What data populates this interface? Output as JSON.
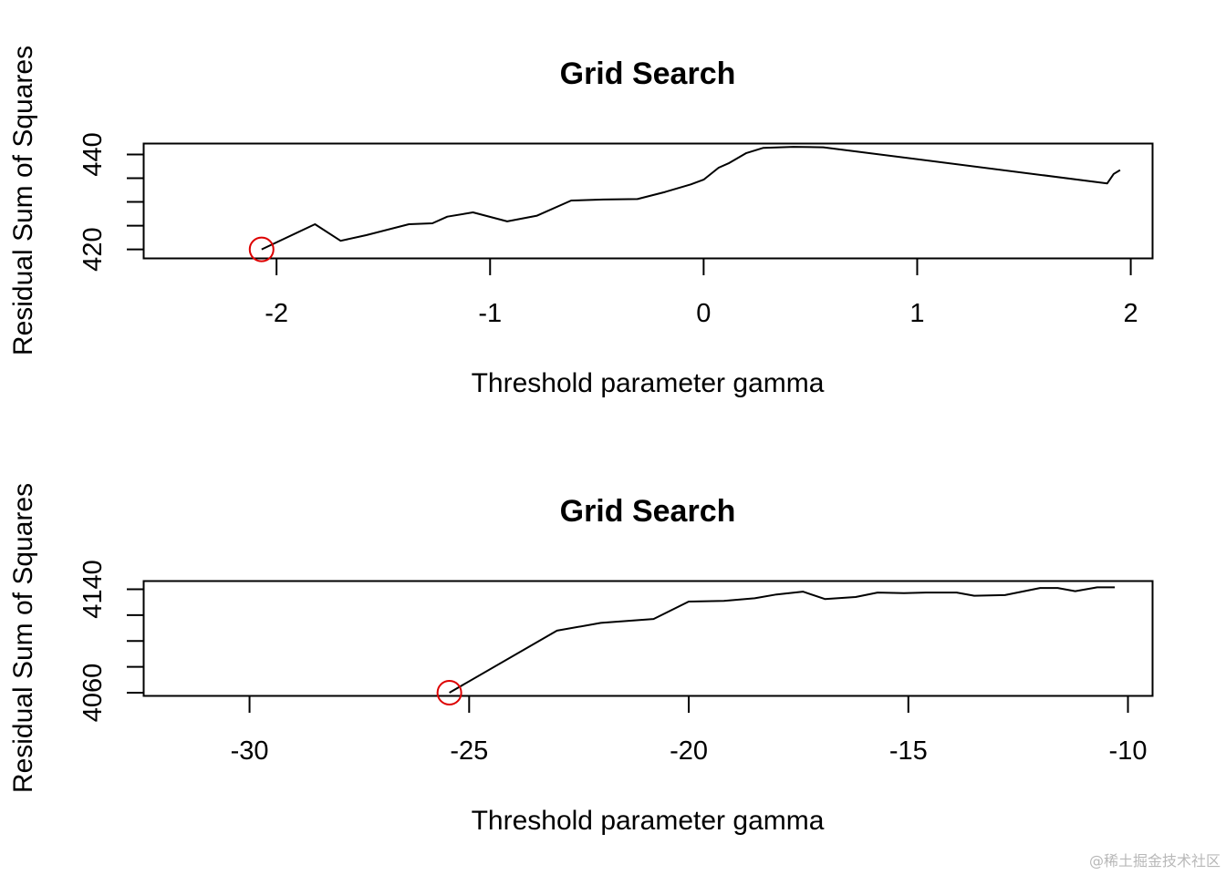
{
  "watermark": "@稀土掘金技术社区",
  "colors": {
    "line": "#000000",
    "marker": "#dd0000",
    "axis": "#000000",
    "background": "#ffffff"
  },
  "chart_data": [
    {
      "type": "line",
      "title": "Grid Search",
      "xlabel": "Threshold parameter gamma",
      "ylabel": "Residual Sum of Squares",
      "xlim": [
        -2.62,
        2.1
      ],
      "ylim": [
        418.2,
        442.2
      ],
      "xticks": [
        -2,
        -1,
        0,
        1,
        2
      ],
      "xtick_labels": [
        "-2",
        "-1",
        "0",
        "1",
        "2"
      ],
      "yticks": [
        420,
        425,
        430,
        435,
        440
      ],
      "ytick_labels": [
        "420",
        "",
        "",
        "",
        "440"
      ],
      "minimum_marker": {
        "x": -2.07,
        "y": 420.0
      },
      "series": [
        {
          "x": [
            -2.07,
            -1.82,
            -1.7,
            -1.58,
            -1.38,
            -1.27,
            -1.2,
            -1.08,
            -0.92,
            -0.78,
            -0.62,
            -0.47,
            -0.31,
            -0.18,
            -0.06,
            0.0,
            0.07,
            0.12,
            0.2,
            0.28,
            0.42,
            0.56,
            1.89,
            1.92,
            1.95
          ],
          "y": [
            420.0,
            425.3,
            421.8,
            423.0,
            425.3,
            425.5,
            426.9,
            427.8,
            425.9,
            427.1,
            430.3,
            430.5,
            430.6,
            432.1,
            433.7,
            434.7,
            437.2,
            438.2,
            440.3,
            441.4,
            441.6,
            441.5,
            433.9,
            435.9,
            436.7
          ]
        }
      ]
    },
    {
      "type": "line",
      "title": "Grid Search",
      "xlabel": "Threshold parameter gamma",
      "ylabel": "Residual Sum of Squares",
      "xlim": [
        -32.4,
        -9.45
      ],
      "ylim": [
        4057.9,
        4146.0
      ],
      "xticks": [
        -30,
        -25,
        -20,
        -15,
        -10
      ],
      "xtick_labels": [
        "-30",
        "-25",
        "-20",
        "-15",
        "-10"
      ],
      "yticks": [
        4060,
        4080,
        4100,
        4120,
        4140
      ],
      "ytick_labels": [
        "4060",
        "",
        "",
        "",
        "4140"
      ],
      "minimum_marker": {
        "x": -25.45,
        "y": 4060.0
      },
      "series": [
        {
          "x": [
            -25.45,
            -23.0,
            -22.0,
            -20.8,
            -20.0,
            -19.2,
            -18.5,
            -18.0,
            -17.4,
            -16.9,
            -16.2,
            -15.7,
            -15.1,
            -14.6,
            -13.9,
            -13.5,
            -12.8,
            -12.0,
            -11.6,
            -11.2,
            -10.7,
            -10.3
          ],
          "y": [
            4060.0,
            4108.0,
            4114.0,
            4117.0,
            4130.5,
            4131.0,
            4133.0,
            4136.0,
            4138.2,
            4132.5,
            4134.0,
            4137.5,
            4137.0,
            4137.5,
            4137.5,
            4135.0,
            4135.5,
            4141.0,
            4141.0,
            4138.5,
            4141.5,
            4141.5
          ]
        }
      ]
    }
  ]
}
